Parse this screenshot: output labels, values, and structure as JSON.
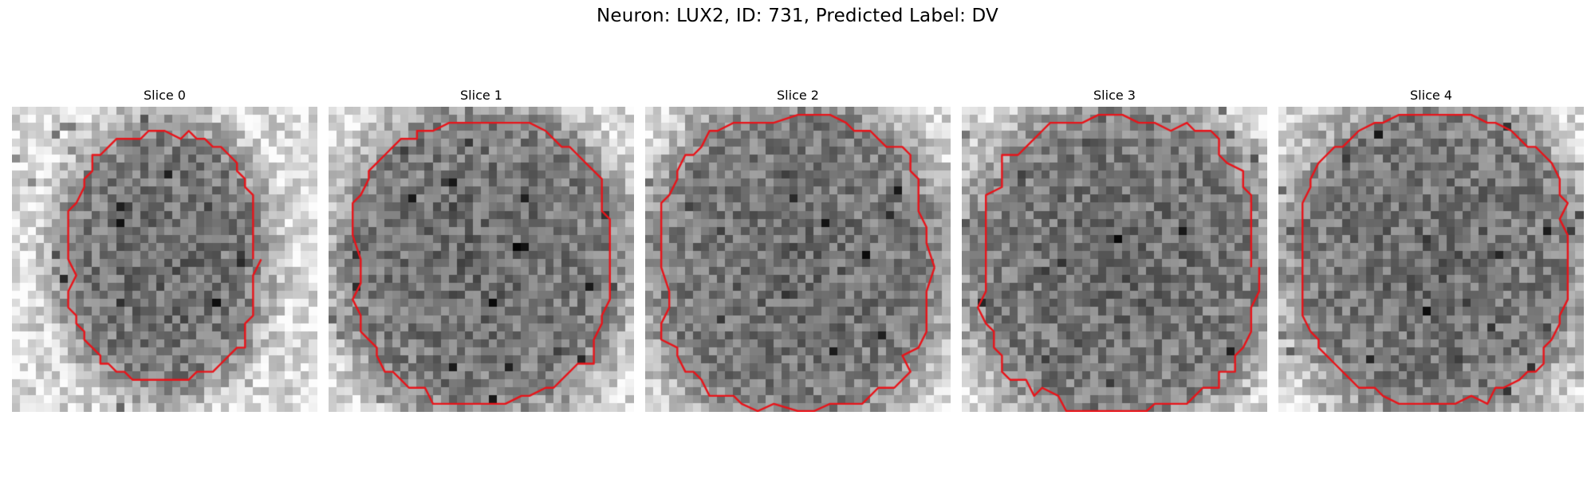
{
  "figure": {
    "title": "Neuron: LUX2, ID: 731, Predicted Label: DV"
  },
  "panels": [
    {
      "title": "Slice 0"
    },
    {
      "title": "Slice 1"
    },
    {
      "title": "Slice 2"
    },
    {
      "title": "Slice 3"
    },
    {
      "title": "Slice 4"
    }
  ],
  "colors": {
    "contour": "#e8141a",
    "background": "#ffffff"
  }
}
